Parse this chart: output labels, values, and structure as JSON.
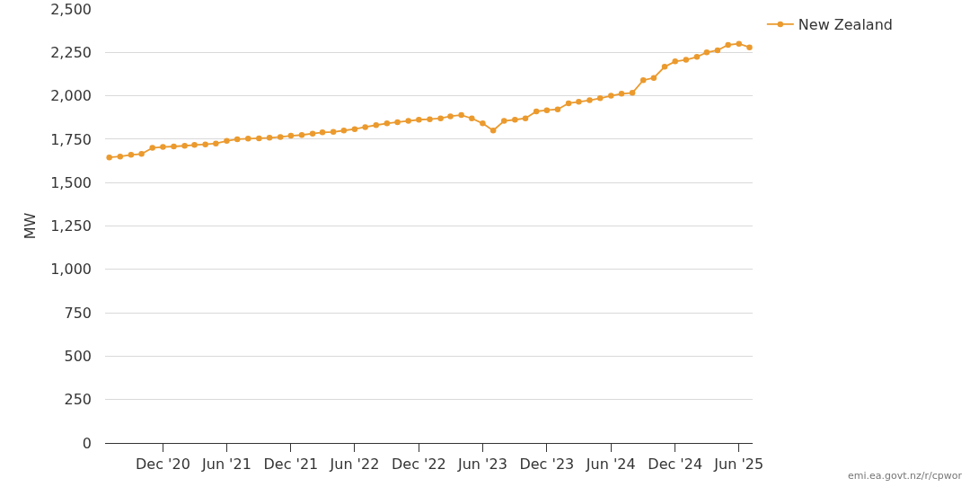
{
  "chart_data": {
    "type": "line",
    "ylabel": "MW",
    "annotations": [
      "emi.ea.govt.nz/r/cpwor"
    ],
    "x": [
      "2020-07",
      "2020-08",
      "2020-09",
      "2020-10",
      "2020-11",
      "2020-12",
      "2021-01",
      "2021-02",
      "2021-03",
      "2021-04",
      "2021-05",
      "2021-06",
      "2021-07",
      "2021-08",
      "2021-09",
      "2021-10",
      "2021-11",
      "2021-12",
      "2022-01",
      "2022-02",
      "2022-03",
      "2022-04",
      "2022-05",
      "2022-06",
      "2022-07",
      "2022-08",
      "2022-09",
      "2022-10",
      "2022-11",
      "2022-12",
      "2023-01",
      "2023-02",
      "2023-03",
      "2023-04",
      "2023-05",
      "2023-06",
      "2023-07",
      "2023-08",
      "2023-09",
      "2023-10",
      "2023-11",
      "2023-12",
      "2024-01",
      "2024-02",
      "2024-03",
      "2024-04",
      "2024-05",
      "2024-06",
      "2024-07",
      "2024-08",
      "2024-09",
      "2024-10",
      "2024-11",
      "2024-12",
      "2025-01",
      "2025-02",
      "2025-03",
      "2025-04",
      "2025-05",
      "2025-06",
      "2025-07"
    ],
    "series": [
      {
        "name": "New Zealand",
        "color": "#eb9a2e",
        "values": [
          1645,
          1650,
          1660,
          1665,
          1700,
          1705,
          1708,
          1712,
          1717,
          1720,
          1725,
          1740,
          1750,
          1753,
          1755,
          1758,
          1763,
          1770,
          1774,
          1782,
          1789,
          1792,
          1800,
          1808,
          1820,
          1831,
          1841,
          1848,
          1855,
          1862,
          1865,
          1870,
          1882,
          1889,
          1870,
          1841,
          1800,
          1855,
          1862,
          1870,
          1910,
          1917,
          1922,
          1957,
          1965,
          1974,
          1986,
          2000,
          2012,
          2017,
          2090,
          2103,
          2167,
          2198,
          2207,
          2224,
          2250,
          2262,
          2293,
          2300,
          2279
        ]
      }
    ],
    "xlim": [
      "2020-06-19",
      "2025-07-10"
    ],
    "xticks": [
      {
        "value": "2020-12",
        "label": "Dec '20"
      },
      {
        "value": "2021-06",
        "label": "Jun '21"
      },
      {
        "value": "2021-12",
        "label": "Dec '21"
      },
      {
        "value": "2022-06",
        "label": "Jun '22"
      },
      {
        "value": "2022-12",
        "label": "Dec '22"
      },
      {
        "value": "2023-06",
        "label": "Jun '23"
      },
      {
        "value": "2023-12",
        "label": "Dec '23"
      },
      {
        "value": "2024-06",
        "label": "Jun '24"
      },
      {
        "value": "2024-12",
        "label": "Dec '24"
      },
      {
        "value": "2025-06",
        "label": "Jun '25"
      }
    ],
    "ylim": [
      0,
      2500
    ],
    "yticks": [
      0,
      250,
      500,
      750,
      {
        "value": 1000,
        "label": "1,000"
      },
      {
        "value": 1250,
        "label": "1,250"
      },
      {
        "value": 1500,
        "label": "1,500"
      },
      {
        "value": 1750,
        "label": "1,750"
      },
      {
        "value": 2000,
        "label": "2,000"
      },
      {
        "value": 2250,
        "label": "2,250"
      },
      {
        "value": 2500,
        "label": "2,500"
      }
    ],
    "grid": "y",
    "legend": "top right",
    "marker": "circle",
    "line_style": "solid"
  }
}
